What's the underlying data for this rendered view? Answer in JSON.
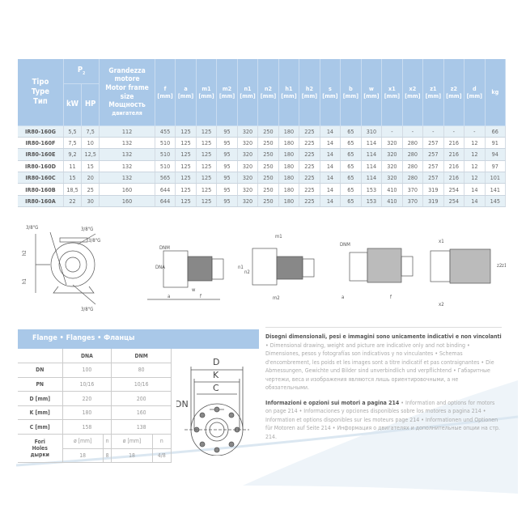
{
  "spec_table": {
    "headers": {
      "type": [
        "Tipo",
        "Type",
        "Тип"
      ],
      "power": "P",
      "power_sub": "2",
      "kw": "kW",
      "hp": "HP",
      "motor": [
        "Grandezza",
        "motore",
        "Motor frame",
        "size",
        "Мощность",
        "двигателя"
      ],
      "dims": [
        {
          "k": "f",
          "u": "[mm]"
        },
        {
          "k": "a",
          "u": "[mm]"
        },
        {
          "k": "m1",
          "u": "[mm]"
        },
        {
          "k": "m2",
          "u": "[mm]"
        },
        {
          "k": "n1",
          "u": "[mm]"
        },
        {
          "k": "n2",
          "u": "[mm]"
        },
        {
          "k": "h1",
          "u": "[mm]"
        },
        {
          "k": "h2",
          "u": "[mm]"
        },
        {
          "k": "s",
          "u": "[mm]"
        },
        {
          "k": "b",
          "u": "[mm]"
        },
        {
          "k": "w",
          "u": "[mm]"
        },
        {
          "k": "x1",
          "u": "[mm]"
        },
        {
          "k": "x2",
          "u": "[mm]"
        },
        {
          "k": "z1",
          "u": "[mm]"
        },
        {
          "k": "z2",
          "u": "[mm]"
        },
        {
          "k": "d",
          "u": "[mm]"
        }
      ],
      "kg": "kg"
    },
    "rows": [
      [
        "IR80-160G",
        "5,5",
        "7,5",
        "112",
        "455",
        "125",
        "125",
        "95",
        "320",
        "250",
        "180",
        "225",
        "14",
        "65",
        "310",
        "-",
        "-",
        "-",
        "-",
        "-",
        "66"
      ],
      [
        "IR80-160F",
        "7,5",
        "10",
        "132",
        "510",
        "125",
        "125",
        "95",
        "320",
        "250",
        "180",
        "225",
        "14",
        "65",
        "114",
        "320",
        "280",
        "257",
        "216",
        "12",
        "91"
      ],
      [
        "IR80-160E",
        "9,2",
        "12,5",
        "132",
        "510",
        "125",
        "125",
        "95",
        "320",
        "250",
        "180",
        "225",
        "14",
        "65",
        "114",
        "320",
        "280",
        "257",
        "216",
        "12",
        "94"
      ],
      [
        "IR80-160D",
        "11",
        "15",
        "132",
        "510",
        "125",
        "125",
        "95",
        "320",
        "250",
        "180",
        "225",
        "14",
        "65",
        "114",
        "320",
        "280",
        "257",
        "216",
        "12",
        "97"
      ],
      [
        "IR80-160C",
        "15",
        "20",
        "132",
        "565",
        "125",
        "125",
        "95",
        "320",
        "250",
        "180",
        "225",
        "14",
        "65",
        "114",
        "320",
        "280",
        "257",
        "216",
        "12",
        "101"
      ],
      [
        "IR80-160B",
        "18,5",
        "25",
        "160",
        "644",
        "125",
        "125",
        "95",
        "320",
        "250",
        "180",
        "225",
        "14",
        "65",
        "153",
        "410",
        "370",
        "319",
        "254",
        "14",
        "141"
      ],
      [
        "IR80-160A",
        "22",
        "30",
        "160",
        "644",
        "125",
        "125",
        "95",
        "320",
        "250",
        "180",
        "225",
        "14",
        "65",
        "153",
        "410",
        "370",
        "319",
        "254",
        "14",
        "145"
      ]
    ]
  },
  "drawings": {
    "thread": "3/8\"G",
    "labels": {
      "h1": "h1",
      "h2": "h2",
      "dnm": "DNM",
      "dna": "DNA",
      "a": "a",
      "w": "w",
      "f": "f",
      "n1": "n1",
      "n2": "n2",
      "m1": "m1",
      "m2": "m2",
      "s": "s",
      "b": "b",
      "x1": "x1",
      "x2": "x2",
      "z1": "z1",
      "z2": "z2"
    }
  },
  "flanges": {
    "title": "Flange • Flanges • Фланцы",
    "cols": [
      "DNA",
      "DNM"
    ],
    "rows": [
      {
        "l": "DN",
        "a": "100",
        "m": "80"
      },
      {
        "l": "PN",
        "a": "10/16",
        "m": "10/16"
      },
      {
        "l": "D [mm]",
        "a": "220",
        "m": "200"
      },
      {
        "l": "K [mm]",
        "a": "180",
        "m": "160"
      },
      {
        "l": "C [mm]",
        "a": "158",
        "m": "138"
      }
    ],
    "holes_label": [
      "Fori",
      "Holes",
      "дырки"
    ],
    "holes_sub": [
      "ø [mm]",
      "n"
    ],
    "holes": {
      "a_d": "18",
      "a_n": "8",
      "m_d": "18",
      "m_n": "4/8"
    },
    "diagram": {
      "D": "D",
      "K": "K",
      "C": "C",
      "DN": "DN"
    }
  },
  "notes": [
    {
      "bold": "Disegni dimensionali, pesi e immagini sono unicamente indicativi e non vincolanti",
      "text": " • Dimensional drawing, weight and picture are indicative only and not binding • Dimensiones, pesos y fotografías son indicativos y no vinculantes • Schemas d'encombrement, les poids et les images sont a titre indicatif et pas contraignantes • Die Abmessungen, Gewichte und Bilder sind unverbindlich und verpflichtend • Габаритные чертежи, веса и изображения являются лишь ориентировочными, а не обязательными."
    },
    {
      "bold": "Informazioni e opzioni sui motori a pagina 214",
      "text": " • Information and options for motors on page 214 • Informaciones y opciones disponibles sobre los motores a pagina 214 • Information et options disponibles sur les moteurs page 214 • Informationen und Optionen für Motoren auf Seite 214 • Информация о двигателях и дополнительные опции на стр. 214."
    }
  ],
  "colors": {
    "header": "#a9c8e8",
    "row_alt": "#e5f0f6"
  }
}
